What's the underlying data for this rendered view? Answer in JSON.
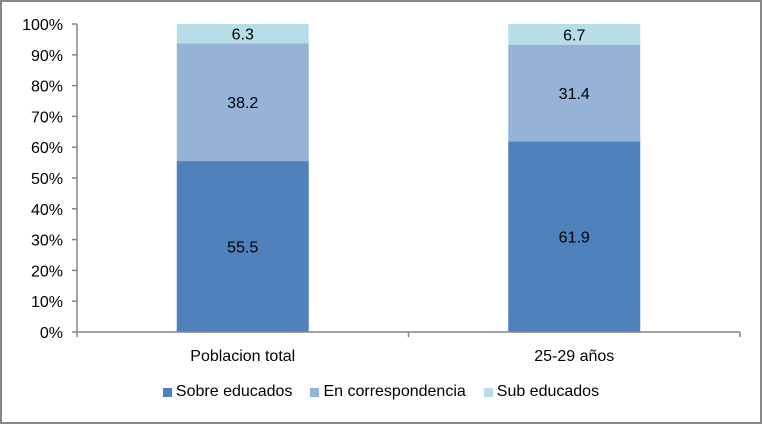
{
  "chart_data": {
    "type": "bar",
    "stacked": true,
    "title": "",
    "xlabel": "",
    "ylabel": "",
    "ylim": [
      0,
      100
    ],
    "y_ticks": [
      "0%",
      "10%",
      "20%",
      "30%",
      "40%",
      "50%",
      "60%",
      "70%",
      "80%",
      "90%",
      "100%"
    ],
    "categories": [
      "Poblacion total",
      "25-29 años"
    ],
    "series": [
      {
        "name": "Sobre educados",
        "values": [
          55.5,
          61.9
        ],
        "labels": [
          "55.5",
          "61.9"
        ],
        "color": "#4F81BD"
      },
      {
        "name": "En correspondencia",
        "values": [
          38.2,
          31.4
        ],
        "labels": [
          "38.2",
          "31.4"
        ],
        "color": "#95B3D7"
      },
      {
        "name": "Sub educados",
        "values": [
          6.3,
          6.7
        ],
        "labels": [
          "6.3",
          "6.7"
        ],
        "color": "#B7DEE8"
      }
    ],
    "legend_position": "bottom",
    "grid": false
  }
}
